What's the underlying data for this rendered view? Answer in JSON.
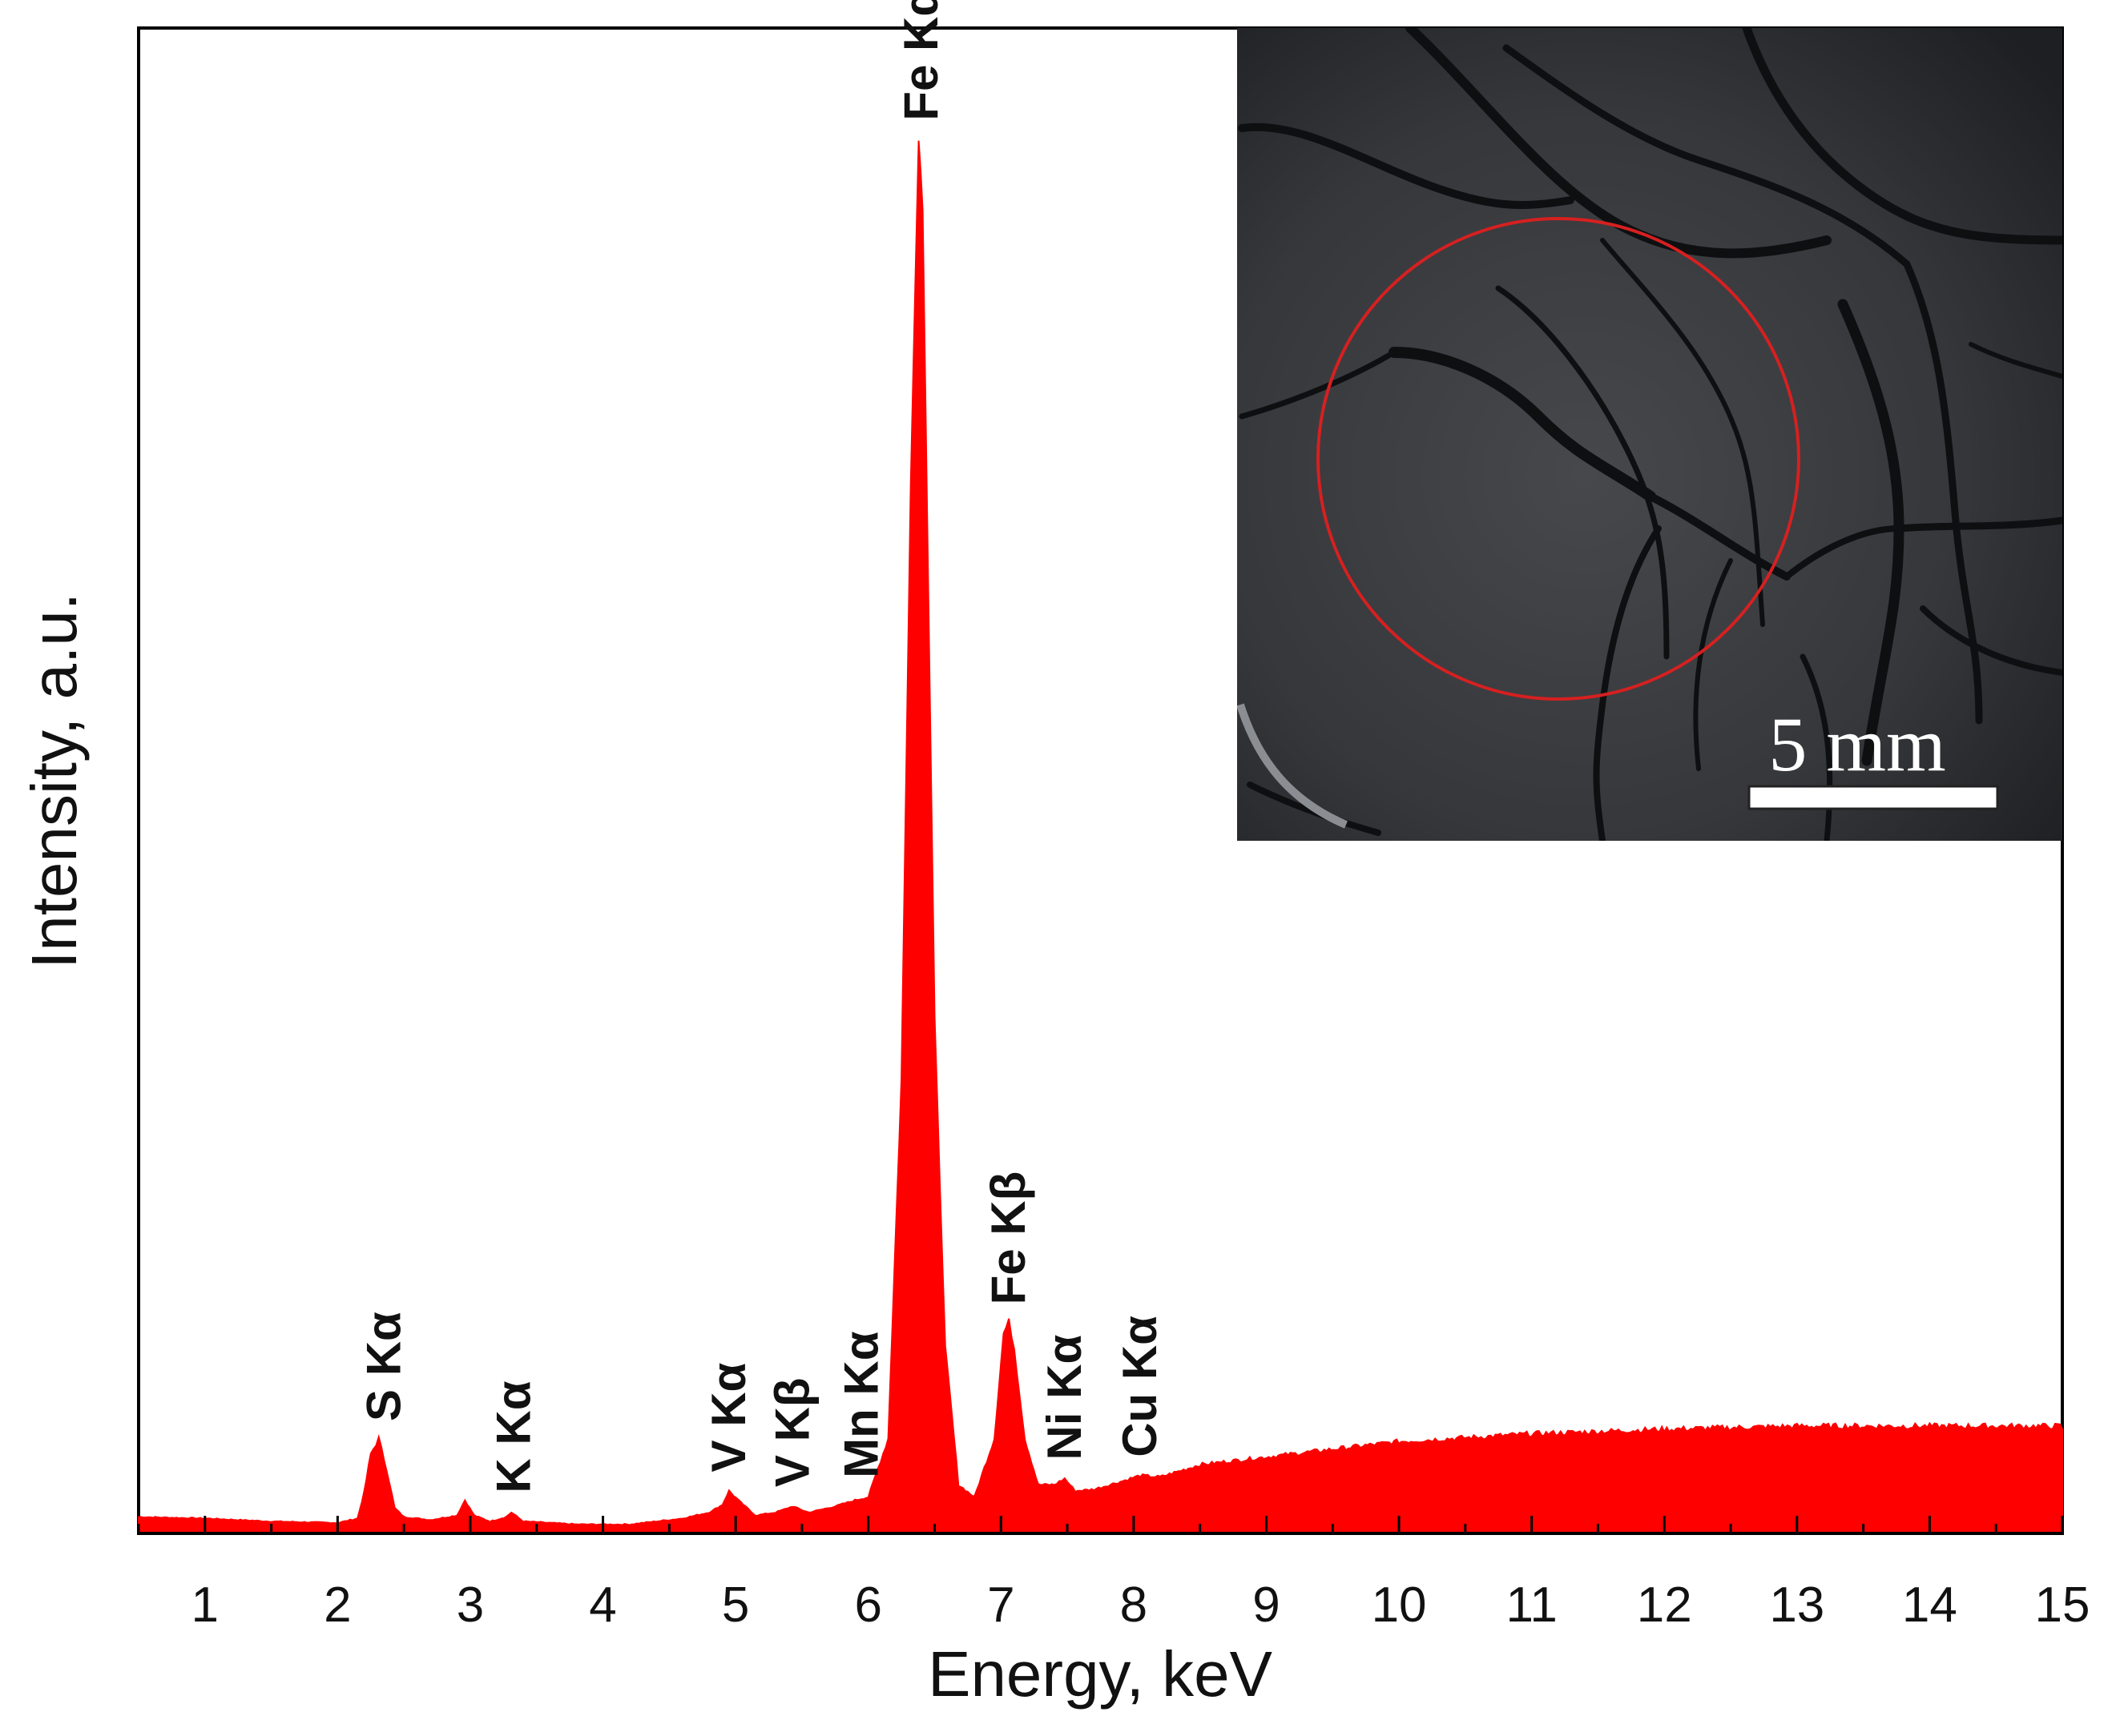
{
  "chart_data": {
    "type": "area",
    "title": "",
    "xlabel": "Energy, keV",
    "ylabel": "Intensity, a.u.",
    "xlim": [
      0.5,
      15
    ],
    "ylim": [
      0,
      100
    ],
    "xticks": [
      1,
      2,
      3,
      4,
      5,
      6,
      7,
      8,
      9,
      10,
      11,
      12,
      13,
      14,
      15
    ],
    "grid": false,
    "legend": "none",
    "series": [
      {
        "color": "#ff0000",
        "x": [
          0.5,
          1.0,
          1.5,
          2.0,
          2.15,
          2.2,
          2.25,
          2.31,
          2.37,
          2.43,
          2.5,
          2.6,
          2.7,
          2.9,
          2.96,
          3.03,
          3.15,
          3.27,
          3.31,
          3.4,
          3.6,
          3.8,
          4.2,
          4.6,
          4.8,
          4.9,
          4.95,
          5.02,
          5.15,
          5.3,
          5.43,
          5.55,
          5.75,
          5.9,
          6.0,
          6.15,
          6.25,
          6.32,
          6.38,
          6.41,
          6.44,
          6.5,
          6.58,
          6.68,
          6.8,
          6.95,
          7.02,
          7.06,
          7.1,
          7.18,
          7.28,
          7.4,
          7.48,
          7.56,
          7.7,
          7.9,
          8.05,
          8.2,
          8.5,
          9.0,
          10.0,
          11.0,
          12.0,
          13.0,
          14.0,
          15.0
        ],
        "values": [
          0.9,
          0.8,
          0.6,
          0.5,
          0.8,
          2.5,
          5.0,
          6.0,
          4.0,
          1.5,
          0.9,
          0.8,
          0.7,
          1.0,
          2.0,
          1.0,
          0.6,
          0.9,
          1.2,
          0.6,
          0.5,
          0.4,
          0.4,
          0.8,
          1.2,
          1.7,
          2.6,
          2.0,
          1.0,
          1.2,
          1.6,
          1.2,
          1.6,
          2.0,
          2.2,
          6.0,
          30.0,
          70.0,
          93.0,
          88.3,
          70.0,
          34.0,
          12.0,
          3.0,
          2.2,
          6.0,
          13.0,
          13.8,
          12.0,
          6.0,
          3.0,
          3.0,
          3.4,
          2.6,
          2.7,
          3.2,
          3.6,
          3.5,
          4.3,
          4.8,
          5.8,
          6.3,
          6.6,
          6.8,
          6.8,
          6.8
        ]
      }
    ],
    "annotations": [
      {
        "text": "S Kα",
        "x": 2.35
      },
      {
        "text": "K Kα",
        "x": 3.33
      },
      {
        "text": "V Kα",
        "x": 4.95
      },
      {
        "text": "V Kβ",
        "x": 5.43
      },
      {
        "text": "Mn Kα",
        "x": 5.95
      },
      {
        "text": "Fe Kα",
        "x": 6.4
      },
      {
        "text": "Fe Kβ",
        "x": 7.06
      },
      {
        "text": "Ni Kα",
        "x": 7.48
      },
      {
        "text": "Cu Kα",
        "x": 8.05
      }
    ]
  },
  "inset": {
    "scale_bar_label": "5 mm",
    "circle_color": "#d62020"
  }
}
